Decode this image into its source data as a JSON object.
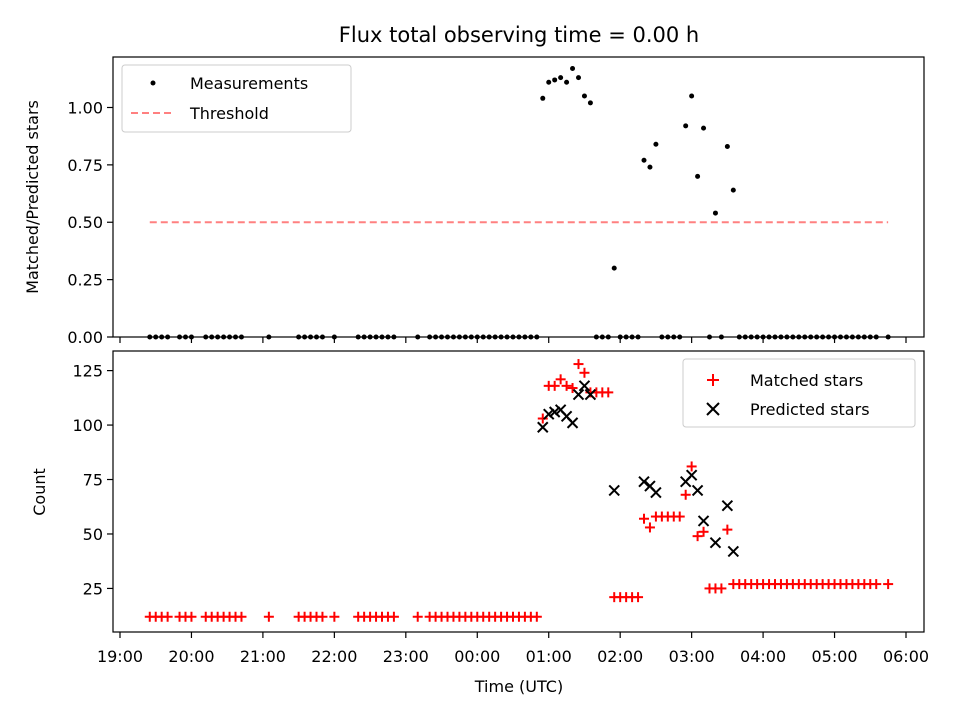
{
  "title": "Flux total observing time = 0.00 h",
  "colors": {
    "measurement": "#000000",
    "threshold": "#ff8080",
    "matched": "#ff0000",
    "predicted": "#000000"
  },
  "chart_data": [
    {
      "type": "scatter",
      "title": "Flux total observing time = 0.00 h",
      "xlabel": "",
      "ylabel": "Matched/Predicted stars",
      "ylim": [
        0,
        1.22
      ],
      "yticks": [
        "0.00",
        "0.25",
        "0.50",
        "0.75",
        "1.00"
      ],
      "grid": false,
      "legend_position": "top-left",
      "series": [
        {
          "name": "Measurements",
          "marker": "dot",
          "points": [
            [
              "19:25",
              0
            ],
            [
              "19:30",
              0
            ],
            [
              "19:35",
              0
            ],
            [
              "19:40",
              0
            ],
            [
              "19:50",
              0
            ],
            [
              "19:55",
              0
            ],
            [
              "20:00",
              0
            ],
            [
              "20:12",
              0
            ],
            [
              "20:17",
              0
            ],
            [
              "20:22",
              0
            ],
            [
              "20:27",
              0
            ],
            [
              "20:32",
              0
            ],
            [
              "20:37",
              0
            ],
            [
              "20:42",
              0
            ],
            [
              "21:05",
              0
            ],
            [
              "21:30",
              0
            ],
            [
              "21:35",
              0
            ],
            [
              "21:40",
              0
            ],
            [
              "21:45",
              0
            ],
            [
              "21:50",
              0
            ],
            [
              "22:00",
              0
            ],
            [
              "22:20",
              0
            ],
            [
              "22:25",
              0
            ],
            [
              "22:30",
              0
            ],
            [
              "22:35",
              0
            ],
            [
              "22:40",
              0
            ],
            [
              "22:45",
              0
            ],
            [
              "22:50",
              0
            ],
            [
              "23:10",
              0
            ],
            [
              "23:20",
              0
            ],
            [
              "23:25",
              0
            ],
            [
              "23:30",
              0
            ],
            [
              "23:35",
              0
            ],
            [
              "23:40",
              0
            ],
            [
              "23:45",
              0
            ],
            [
              "23:50",
              0
            ],
            [
              "23:55",
              0
            ],
            [
              "00:00",
              0
            ],
            [
              "00:05",
              0
            ],
            [
              "00:10",
              0
            ],
            [
              "00:15",
              0
            ],
            [
              "00:20",
              0
            ],
            [
              "00:25",
              0
            ],
            [
              "00:30",
              0
            ],
            [
              "00:35",
              0
            ],
            [
              "00:40",
              0
            ],
            [
              "00:45",
              0
            ],
            [
              "00:50",
              0
            ],
            [
              "00:55",
              1.04
            ],
            [
              "01:00",
              1.11
            ],
            [
              "01:05",
              1.12
            ],
            [
              "01:10",
              1.13
            ],
            [
              "01:15",
              1.11
            ],
            [
              "01:20",
              1.17
            ],
            [
              "01:25",
              1.13
            ],
            [
              "01:30",
              1.05
            ],
            [
              "01:35",
              1.02
            ],
            [
              "01:40",
              0
            ],
            [
              "01:45",
              0
            ],
            [
              "01:50",
              0
            ],
            [
              "01:55",
              0.3
            ],
            [
              "02:00",
              0
            ],
            [
              "02:05",
              0
            ],
            [
              "02:10",
              0
            ],
            [
              "02:15",
              0
            ],
            [
              "02:20",
              0.77
            ],
            [
              "02:25",
              0.74
            ],
            [
              "02:30",
              0.84
            ],
            [
              "02:35",
              0
            ],
            [
              "02:40",
              0
            ],
            [
              "02:45",
              0
            ],
            [
              "02:50",
              0
            ],
            [
              "02:55",
              0.92
            ],
            [
              "03:00",
              1.05
            ],
            [
              "03:05",
              0.7
            ],
            [
              "03:10",
              0.91
            ],
            [
              "03:15",
              0
            ],
            [
              "03:20",
              0.54
            ],
            [
              "03:25",
              0
            ],
            [
              "03:30",
              0.83
            ],
            [
              "03:35",
              0.64
            ],
            [
              "03:40",
              0
            ],
            [
              "03:45",
              0
            ],
            [
              "03:50",
              0
            ],
            [
              "03:55",
              0
            ],
            [
              "04:00",
              0
            ],
            [
              "04:05",
              0
            ],
            [
              "04:10",
              0
            ],
            [
              "04:15",
              0
            ],
            [
              "04:20",
              0
            ],
            [
              "04:25",
              0
            ],
            [
              "04:30",
              0
            ],
            [
              "04:35",
              0
            ],
            [
              "04:40",
              0
            ],
            [
              "04:45",
              0
            ],
            [
              "04:50",
              0
            ],
            [
              "04:55",
              0
            ],
            [
              "05:00",
              0
            ],
            [
              "05:05",
              0
            ],
            [
              "05:10",
              0
            ],
            [
              "05:15",
              0
            ],
            [
              "05:20",
              0
            ],
            [
              "05:25",
              0
            ],
            [
              "05:30",
              0
            ],
            [
              "05:35",
              0
            ],
            [
              "05:45",
              0
            ]
          ]
        },
        {
          "name": "Threshold",
          "marker": "dashed-line",
          "points": [
            [
              "19:25",
              0.5
            ],
            [
              "05:45",
              0.5
            ]
          ]
        }
      ]
    },
    {
      "type": "scatter",
      "title": "",
      "xlabel": "Time (UTC)",
      "ylabel": "Count",
      "ylim": [
        5,
        134
      ],
      "yticks": [
        "25",
        "50",
        "75",
        "100",
        "125"
      ],
      "xticks": [
        "19:00",
        "20:00",
        "21:00",
        "22:00",
        "23:00",
        "00:00",
        "01:00",
        "02:00",
        "03:00",
        "04:00",
        "05:00",
        "06:00"
      ],
      "grid": false,
      "legend_position": "top-right",
      "series": [
        {
          "name": "Matched stars",
          "marker": "plus",
          "points": [
            [
              "19:25",
              12
            ],
            [
              "19:30",
              12
            ],
            [
              "19:35",
              12
            ],
            [
              "19:40",
              12
            ],
            [
              "19:50",
              12
            ],
            [
              "19:55",
              12
            ],
            [
              "20:00",
              12
            ],
            [
              "20:12",
              12
            ],
            [
              "20:17",
              12
            ],
            [
              "20:22",
              12
            ],
            [
              "20:27",
              12
            ],
            [
              "20:32",
              12
            ],
            [
              "20:37",
              12
            ],
            [
              "20:42",
              12
            ],
            [
              "21:05",
              12
            ],
            [
              "21:30",
              12
            ],
            [
              "21:35",
              12
            ],
            [
              "21:40",
              12
            ],
            [
              "21:45",
              12
            ],
            [
              "21:50",
              12
            ],
            [
              "22:00",
              12
            ],
            [
              "22:20",
              12
            ],
            [
              "22:25",
              12
            ],
            [
              "22:30",
              12
            ],
            [
              "22:35",
              12
            ],
            [
              "22:40",
              12
            ],
            [
              "22:45",
              12
            ],
            [
              "22:50",
              12
            ],
            [
              "23:10",
              12
            ],
            [
              "23:20",
              12
            ],
            [
              "23:25",
              12
            ],
            [
              "23:30",
              12
            ],
            [
              "23:35",
              12
            ],
            [
              "23:40",
              12
            ],
            [
              "23:45",
              12
            ],
            [
              "23:50",
              12
            ],
            [
              "23:55",
              12
            ],
            [
              "00:00",
              12
            ],
            [
              "00:05",
              12
            ],
            [
              "00:10",
              12
            ],
            [
              "00:15",
              12
            ],
            [
              "00:20",
              12
            ],
            [
              "00:25",
              12
            ],
            [
              "00:30",
              12
            ],
            [
              "00:35",
              12
            ],
            [
              "00:40",
              12
            ],
            [
              "00:45",
              12
            ],
            [
              "00:50",
              12
            ],
            [
              "00:55",
              103
            ],
            [
              "01:00",
              118
            ],
            [
              "01:05",
              118
            ],
            [
              "01:10",
              121
            ],
            [
              "01:15",
              118
            ],
            [
              "01:20",
              117
            ],
            [
              "01:25",
              128
            ],
            [
              "01:30",
              124
            ],
            [
              "01:35",
              115
            ],
            [
              "01:40",
              115
            ],
            [
              "01:45",
              115
            ],
            [
              "01:50",
              115
            ],
            [
              "01:55",
              21
            ],
            [
              "02:00",
              21
            ],
            [
              "02:05",
              21
            ],
            [
              "02:10",
              21
            ],
            [
              "02:15",
              21
            ],
            [
              "02:20",
              57
            ],
            [
              "02:25",
              53
            ],
            [
              "02:30",
              58
            ],
            [
              "02:35",
              58
            ],
            [
              "02:40",
              58
            ],
            [
              "02:45",
              58
            ],
            [
              "02:50",
              58
            ],
            [
              "02:55",
              68
            ],
            [
              "03:00",
              81
            ],
            [
              "03:05",
              49
            ],
            [
              "03:10",
              51
            ],
            [
              "03:15",
              25
            ],
            [
              "03:20",
              25
            ],
            [
              "03:25",
              25
            ],
            [
              "03:30",
              52
            ],
            [
              "03:35",
              27
            ],
            [
              "03:40",
              27
            ],
            [
              "03:45",
              27
            ],
            [
              "03:50",
              27
            ],
            [
              "03:55",
              27
            ],
            [
              "04:00",
              27
            ],
            [
              "04:05",
              27
            ],
            [
              "04:10",
              27
            ],
            [
              "04:15",
              27
            ],
            [
              "04:20",
              27
            ],
            [
              "04:25",
              27
            ],
            [
              "04:30",
              27
            ],
            [
              "04:35",
              27
            ],
            [
              "04:40",
              27
            ],
            [
              "04:45",
              27
            ],
            [
              "04:50",
              27
            ],
            [
              "04:55",
              27
            ],
            [
              "05:00",
              27
            ],
            [
              "05:05",
              27
            ],
            [
              "05:10",
              27
            ],
            [
              "05:15",
              27
            ],
            [
              "05:20",
              27
            ],
            [
              "05:25",
              27
            ],
            [
              "05:30",
              27
            ],
            [
              "05:35",
              27
            ],
            [
              "05:45",
              27
            ]
          ]
        },
        {
          "name": "Predicted stars",
          "marker": "x",
          "points": [
            [
              "00:55",
              99
            ],
            [
              "01:00",
              105
            ],
            [
              "01:05",
              106
            ],
            [
              "01:10",
              107
            ],
            [
              "01:15",
              104
            ],
            [
              "01:20",
              101
            ],
            [
              "01:25",
              114
            ],
            [
              "01:30",
              118
            ],
            [
              "01:35",
              114
            ],
            [
              "01:55",
              70
            ],
            [
              "02:20",
              74
            ],
            [
              "02:25",
              72
            ],
            [
              "02:30",
              69
            ],
            [
              "02:55",
              74
            ],
            [
              "03:00",
              77
            ],
            [
              "03:05",
              70
            ],
            [
              "03:10",
              56
            ],
            [
              "03:20",
              46
            ],
            [
              "03:30",
              63
            ],
            [
              "03:35",
              42
            ]
          ]
        }
      ]
    }
  ]
}
